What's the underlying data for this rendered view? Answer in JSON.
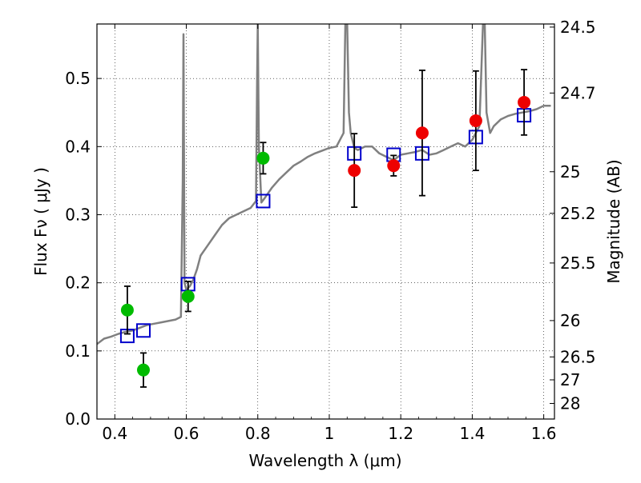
{
  "chart_data": {
    "type": "scatter",
    "title": "",
    "xlabel": "Wavelength  λ (μm)",
    "ylabel": "Flux  Fν  ( μJy )",
    "y2label": "Magnitude (AB)",
    "xlim": [
      0.35,
      1.63
    ],
    "ylim": [
      0.0,
      0.58
    ],
    "grid": true,
    "x_ticks": [
      0.4,
      0.6,
      0.8,
      1.0,
      1.2,
      1.4,
      1.6
    ],
    "x_tick_labels": [
      "0.4",
      "0.6",
      "0.8",
      "1",
      "1.2",
      "1.4",
      "1.6"
    ],
    "y_ticks": [
      0.0,
      0.1,
      0.2,
      0.3,
      0.4,
      0.5
    ],
    "y_tick_labels": [
      "0.0",
      "0.1",
      "0.2",
      "0.3",
      "0.4",
      "0.5"
    ],
    "y2_ticks": [
      24.5,
      24.7,
      25,
      25.2,
      25.5,
      26,
      26.5,
      27,
      28
    ],
    "y2_tick_labels": [
      "24.5",
      "24.7",
      "25",
      "25.2",
      "25.5",
      "26",
      "26.5",
      "27",
      "28"
    ],
    "colors": {
      "model": "#808080",
      "green": "#00bb00",
      "red": "#ee0000",
      "box": "#0000cc",
      "errorbar": "#000000"
    },
    "series": [
      {
        "name": "model spectrum",
        "kind": "line",
        "x": [
          0.35,
          0.37,
          0.39,
          0.41,
          0.43,
          0.45,
          0.47,
          0.49,
          0.51,
          0.53,
          0.55,
          0.57,
          0.585,
          0.59,
          0.592,
          0.595,
          0.6,
          0.61,
          0.62,
          0.63,
          0.64,
          0.66,
          0.68,
          0.7,
          0.72,
          0.74,
          0.76,
          0.78,
          0.795,
          0.798,
          0.8,
          0.803,
          0.81,
          0.82,
          0.84,
          0.86,
          0.88,
          0.9,
          0.92,
          0.94,
          0.96,
          0.98,
          1.0,
          1.02,
          1.04,
          1.045,
          1.05,
          1.055,
          1.06,
          1.07,
          1.08,
          1.1,
          1.12,
          1.14,
          1.16,
          1.18,
          1.2,
          1.22,
          1.24,
          1.26,
          1.28,
          1.3,
          1.32,
          1.34,
          1.36,
          1.38,
          1.4,
          1.42,
          1.43,
          1.435,
          1.44,
          1.45,
          1.46,
          1.48,
          1.5,
          1.52,
          1.54,
          1.56,
          1.58,
          1.6,
          1.62
        ],
        "y": [
          0.11,
          0.118,
          0.121,
          0.125,
          0.128,
          0.13,
          0.134,
          0.138,
          0.14,
          0.142,
          0.144,
          0.146,
          0.15,
          0.35,
          0.565,
          0.2,
          0.19,
          0.195,
          0.205,
          0.22,
          0.24,
          0.255,
          0.27,
          0.285,
          0.295,
          0.3,
          0.305,
          0.31,
          0.32,
          0.5,
          0.58,
          0.4,
          0.318,
          0.325,
          0.34,
          0.352,
          0.362,
          0.372,
          0.378,
          0.385,
          0.39,
          0.394,
          0.398,
          0.4,
          0.42,
          0.58,
          0.58,
          0.45,
          0.42,
          0.398,
          0.395,
          0.4,
          0.4,
          0.39,
          0.385,
          0.38,
          0.388,
          0.39,
          0.392,
          0.395,
          0.388,
          0.39,
          0.395,
          0.4,
          0.405,
          0.4,
          0.41,
          0.43,
          0.58,
          0.58,
          0.45,
          0.42,
          0.43,
          0.44,
          0.445,
          0.448,
          0.45,
          0.452,
          0.455,
          0.46,
          0.46
        ]
      },
      {
        "name": "green points",
        "kind": "scatter",
        "marker": "circle",
        "color": "#00bb00",
        "x": [
          0.435,
          0.48,
          0.605,
          0.815
        ],
        "y": [
          0.16,
          0.072,
          0.18,
          0.383
        ],
        "err": [
          0.035,
          0.025,
          0.022,
          0.023
        ]
      },
      {
        "name": "red points",
        "kind": "scatter",
        "marker": "circle",
        "color": "#ee0000",
        "x": [
          1.07,
          1.18,
          1.26,
          1.41,
          1.545
        ],
        "y": [
          0.365,
          0.372,
          0.42,
          0.438,
          0.465
        ],
        "err": [
          0.054,
          0.015,
          0.092,
          0.073,
          0.048
        ]
      },
      {
        "name": "model photometry",
        "kind": "scatter",
        "marker": "open-square",
        "color": "#0000cc",
        "x": [
          0.435,
          0.48,
          0.605,
          0.815,
          1.07,
          1.18,
          1.26,
          1.41,
          1.545
        ],
        "y": [
          0.122,
          0.13,
          0.198,
          0.32,
          0.39,
          0.388,
          0.39,
          0.414,
          0.446
        ]
      }
    ]
  }
}
